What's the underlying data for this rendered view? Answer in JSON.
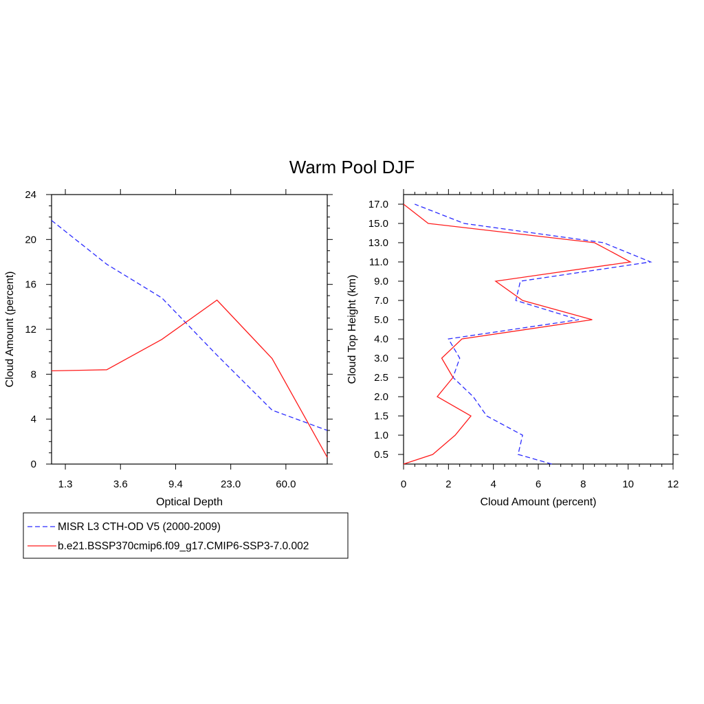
{
  "figure": {
    "title": "Warm Pool DJF",
    "colors": {
      "obs": "#2b2bff",
      "model": "#ff1a1a",
      "axis": "#000000"
    }
  },
  "legend": {
    "entries": [
      {
        "series": "obs",
        "label": "MISR L3 CTH-OD V5 (2000-2009)",
        "style": "dashed",
        "color": "#2b2bff"
      },
      {
        "series": "model",
        "label": "b.e21.BSSP370cmip6.f09_g17.CMIP6-SSP3-7.0.002",
        "style": "solid",
        "color": "#ff1a1a"
      }
    ]
  },
  "chart_data": [
    {
      "type": "line",
      "xlabel": "Optical Depth",
      "ylabel": "Cloud Amount (percent)",
      "ylim": [
        0,
        24
      ],
      "yticks": [
        0,
        4,
        8,
        12,
        16,
        20,
        24
      ],
      "x_index_range": [
        0,
        5
      ],
      "x_tick_positions": [
        0.25,
        1.25,
        2.25,
        3.25,
        4.25
      ],
      "x_tick_labels": [
        "1.3",
        "3.6",
        "9.4",
        "23.0",
        "60.0"
      ],
      "grid": false,
      "series": [
        {
          "name": "MISR L3 CTH-OD V5 (2000-2009)",
          "key": "obs",
          "style": "dashed",
          "color": "#2b2bff",
          "x": [
            0,
            1,
            2,
            3,
            4,
            5
          ],
          "values": [
            21.7,
            17.8,
            14.8,
            9.7,
            4.8,
            3.0
          ]
        },
        {
          "name": "b.e21.BSSP370cmip6.f09_g17.CMIP6-SSP3-7.0.002",
          "key": "model",
          "style": "solid",
          "color": "#ff1a1a",
          "x": [
            0,
            1,
            2,
            3,
            4,
            5
          ],
          "values": [
            8.3,
            8.4,
            11.1,
            14.6,
            9.4,
            0.6
          ]
        }
      ]
    },
    {
      "type": "line",
      "xlabel": "Cloud Amount (percent)",
      "ylabel": "Cloud Top Height (km)",
      "xlim": [
        0,
        12
      ],
      "xticks": [
        0,
        2,
        4,
        6,
        8,
        10,
        12
      ],
      "y_index_range": [
        0,
        14
      ],
      "y_tick_positions": [
        0.5,
        1.5,
        2.5,
        3.5,
        4.5,
        5.5,
        6.5,
        7.5,
        8.5,
        9.5,
        10.5,
        11.5,
        12.5,
        13.5
      ],
      "y_tick_labels": [
        "0.5",
        "1.0",
        "1.5",
        "2.0",
        "2.5",
        "3.0",
        "4.0",
        "5.0",
        "7.0",
        "9.0",
        "11.0",
        "13.0",
        "15.0",
        "17.0"
      ],
      "grid": false,
      "series": [
        {
          "name": "MISR L3 CTH-OD V5 (2000-2009)",
          "key": "obs",
          "style": "dashed",
          "color": "#2b2bff",
          "values": [
            6.6,
            5.1,
            5.3,
            3.7,
            3.1,
            2.2,
            2.5,
            2.0,
            7.8,
            5.0,
            5.2,
            11.0,
            8.9,
            2.7,
            0.5
          ],
          "y": [
            0,
            0.5,
            1.5,
            2.5,
            3.5,
            4.5,
            5.5,
            6.5,
            7.5,
            8.5,
            9.5,
            10.5,
            11.5,
            12.5,
            13.5
          ]
        },
        {
          "name": "b.e21.BSSP370cmip6.f09_g17.CMIP6-SSP3-7.0.002",
          "key": "model",
          "style": "solid",
          "color": "#ff1a1a",
          "values": [
            0.0,
            1.3,
            2.3,
            3.0,
            1.5,
            2.2,
            1.7,
            2.6,
            8.4,
            5.3,
            4.1,
            10.1,
            8.5,
            1.1,
            0.0
          ],
          "y": [
            0,
            0.5,
            1.5,
            2.5,
            3.5,
            4.5,
            5.5,
            6.5,
            7.5,
            8.5,
            9.5,
            10.5,
            11.5,
            12.5,
            13.5
          ]
        }
      ]
    }
  ]
}
